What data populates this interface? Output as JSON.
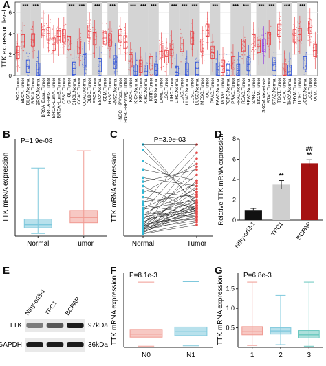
{
  "panel_labels": {
    "A": "A",
    "B": "B",
    "C": "C",
    "D": "D",
    "E": "E",
    "F": "F",
    "G": "G"
  },
  "chart_data": [
    {
      "id": "A",
      "type": "box",
      "ylabel": "TTK expression level",
      "ylim": [
        0,
        7
      ],
      "yticks": [
        0,
        2,
        4,
        6
      ],
      "categories": [
        "ACC.Tumor",
        "BLCA.Tumor",
        "BLCA.Normal",
        "BRCA.Tumor",
        "BRCA.Normal",
        "BRCA−Basal.Tumor",
        "BRCA−Her2.Tumor",
        "BRCA−LumA.Tumor",
        "BRCA−LumB.Tumor",
        "CESC.Tumor",
        "CHOL.Tumor",
        "CHOL.Normal",
        "COAD.Tumor",
        "COAD.Normal",
        "DLBC.Tumor",
        "ESCA.Tumor",
        "ESCA.Normal",
        "GBM.Tumor",
        "HNSC.Tumor",
        "HNSC.Normal",
        "HNSC−HPVpos.Tumor",
        "HNSC−HPVneg.Tumor",
        "KICH.Tumor",
        "KICH.Normal",
        "KIRC.Tumor",
        "KIRC.Normal",
        "KIRP.Tumor",
        "KIRP.Normal",
        "LAML.Tumor",
        "LGG.Tumor",
        "LIHC.Tumor",
        "LIHC.Normal",
        "LUAD.Tumor",
        "LUAD.Normal",
        "LUSC.Tumor",
        "LUSC.Normal",
        "MESO.Tumor",
        "OV.Tumor",
        "PAAD.Tumor",
        "PAAD.Normal",
        "PCPG.Tumor",
        "PCPG.Normal",
        "PRAD.Tumor",
        "PRAD.Normal",
        "READ.Tumor",
        "READ.Normal",
        "SARC.Tumor",
        "SKCM.Tumor",
        "SKCM.Metastasis",
        "STAD.Tumor",
        "STAD.Normal",
        "TGCT.Tumor",
        "THCA.Tumor",
        "THCA.Normal",
        "THYM.Tumor",
        "UCEC.Tumor",
        "UCEC.Normal",
        "UCS.Tumor",
        "UVM.Tumor"
      ],
      "medians": [
        2.2,
        3.3,
        0.9,
        3.4,
        0.6,
        4.4,
        4.0,
        3.0,
        3.7,
        3.8,
        3.1,
        0.7,
        2.7,
        1.4,
        4.2,
        3.5,
        1.0,
        3.6,
        3.4,
        1.3,
        3.8,
        3.2,
        1.4,
        0.4,
        0.9,
        0.4,
        1.2,
        0.5,
        2.3,
        1.8,
        2.5,
        0.3,
        2.9,
        0.6,
        3.6,
        0.7,
        2.9,
        4.3,
        2.2,
        0.6,
        0.9,
        0.5,
        1.2,
        0.5,
        2.9,
        1.1,
        3.3,
        2.8,
        2.9,
        3.5,
        1.1,
        4.3,
        0.6,
        0.4,
        3.8,
        3.9,
        1.2,
        4.6,
        2.4
      ],
      "groups": [
        "tumor",
        "tumor",
        "normal",
        "tumor",
        "normal",
        "tumor",
        "tumor",
        "tumor",
        "tumor",
        "tumor",
        "tumor",
        "normal",
        "tumor",
        "normal",
        "tumor",
        "tumor",
        "normal",
        "tumor",
        "tumor",
        "normal",
        "tumor",
        "tumor",
        "tumor",
        "normal",
        "tumor",
        "normal",
        "tumor",
        "normal",
        "tumor",
        "tumor",
        "tumor",
        "normal",
        "tumor",
        "normal",
        "tumor",
        "normal",
        "tumor",
        "tumor",
        "tumor",
        "normal",
        "tumor",
        "normal",
        "tumor",
        "normal",
        "tumor",
        "normal",
        "tumor",
        "tumor",
        "metastasis",
        "tumor",
        "normal",
        "tumor",
        "tumor",
        "normal",
        "tumor",
        "tumor",
        "normal",
        "tumor",
        "tumor"
      ],
      "significance": [
        "",
        "***",
        "",
        "***",
        "",
        "",
        "",
        "",
        "",
        "",
        "***",
        "",
        "***",
        "",
        "",
        "***",
        "",
        "",
        "***",
        "",
        "",
        "",
        "***",
        "",
        "***",
        "",
        "***",
        "",
        "",
        "",
        "***",
        "",
        "***",
        "",
        "***",
        "",
        "",
        "",
        "***",
        "",
        "",
        "",
        "***",
        "",
        "***",
        "",
        "",
        "***",
        "",
        "***",
        "",
        "",
        "***",
        "",
        "",
        "***",
        "",
        "",
        ""
      ],
      "colors": {
        "tumor": "#e8383d",
        "normal": "#2b4fd8",
        "metastasis": "#8a2be2"
      }
    },
    {
      "id": "B",
      "type": "box",
      "annotation": "P=1.9e-08",
      "ylabel": "TTK mRNA expression",
      "categories": [
        "Normal",
        "Tumor"
      ],
      "stats": [
        {
          "min": 0.05,
          "q1": 0.16,
          "median": 0.22,
          "q3": 0.33,
          "max": 1.33
        },
        {
          "min": 0.02,
          "q1": 0.26,
          "median": 0.36,
          "q3": 0.5,
          "max": 1.67
        }
      ],
      "colors": [
        "#7ec8dc",
        "#f09a92"
      ]
    },
    {
      "id": "C",
      "type": "paired",
      "annotation": "P=3.9e-03",
      "ylabel": "TTK mRNA expression",
      "categories": [
        "Normal",
        "Tumor"
      ],
      "normal": [
        1.65,
        1.55,
        1.35,
        1.2,
        1.05,
        0.98,
        0.9,
        0.82,
        0.78,
        0.7,
        0.62,
        0.58,
        0.55,
        0.5,
        0.48,
        0.45,
        0.42,
        0.4,
        0.38,
        0.36,
        0.34,
        0.32,
        0.3,
        0.28,
        0.26,
        0.25,
        0.24,
        0.22,
        0.21,
        0.2,
        0.19,
        0.18,
        0.17,
        0.16,
        0.15,
        0.14,
        0.13,
        0.12,
        0.11,
        0.1,
        0.09,
        0.08,
        0.07,
        0.06,
        0.05,
        0.04
      ],
      "tumor": [
        0.55,
        0.6,
        0.8,
        1.0,
        0.9,
        1.2,
        0.45,
        0.7,
        1.3,
        0.5,
        0.75,
        1.65,
        0.4,
        0.95,
        0.65,
        1.5,
        0.35,
        0.85,
        0.6,
        1.1,
        0.5,
        0.7,
        0.45,
        1.4,
        0.55,
        0.3,
        0.8,
        0.65,
        0.38,
        1.25,
        0.5,
        0.42,
        0.9,
        0.6,
        0.35,
        0.72,
        0.28,
        0.55,
        0.48,
        1.0,
        0.33,
        0.62,
        0.44,
        0.52,
        0.25,
        0.2
      ],
      "colors": {
        "normal": "#2fb8d6",
        "tumor": "#e84a4a"
      }
    },
    {
      "id": "D",
      "type": "bar",
      "ylabel": "Relative TTK mRNA expression",
      "ylim": [
        0,
        8
      ],
      "yticks": [
        0,
        2,
        4,
        6,
        8
      ],
      "categories": [
        "Nthy-ori3-1",
        "TPC1",
        "BCPAP"
      ],
      "values": [
        1.0,
        3.5,
        5.6
      ],
      "errors": [
        0.15,
        0.4,
        0.35
      ],
      "marks": [
        "",
        "**",
        "##\n**"
      ],
      "colors": [
        "#111111",
        "#cfcfcf",
        "#a51212"
      ]
    },
    {
      "id": "E",
      "type": "blot",
      "lanes": [
        "Nthy-ori3-1",
        "TPC1",
        "BCPAP"
      ],
      "rows": [
        {
          "label": "TTK",
          "size": "97kDa",
          "intensity": [
            0.55,
            0.7,
            0.95
          ]
        },
        {
          "label": "GAPDH",
          "size": "36kDa",
          "intensity": [
            0.95,
            0.95,
            0.95
          ]
        }
      ]
    },
    {
      "id": "F",
      "type": "box",
      "annotation": "P=8.1e-3",
      "ylabel": "TTK mRNA expression",
      "categories": [
        "N0",
        "N1"
      ],
      "stats": [
        {
          "min": 0.03,
          "q1": 0.26,
          "median": 0.34,
          "q3": 0.46,
          "max": 1.67
        },
        {
          "min": 0.04,
          "q1": 0.3,
          "median": 0.4,
          "q3": 0.52,
          "max": 1.68
        }
      ],
      "colors": [
        "#f09a92",
        "#7ec8dc"
      ]
    },
    {
      "id": "G",
      "type": "box",
      "annotation": "P=6.8e-3",
      "ylabel": "TTK mRNA expression",
      "ylim": [
        0,
        1.9
      ],
      "yticks": [
        0.5,
        1.0,
        1.5
      ],
      "categories": [
        "1",
        "2",
        "3"
      ],
      "stats": [
        {
          "min": 0.05,
          "q1": 0.32,
          "median": 0.4,
          "q3": 0.53,
          "max": 1.67
        },
        {
          "min": 0.07,
          "q1": 0.34,
          "median": 0.42,
          "q3": 0.5,
          "max": 1.33
        },
        {
          "min": 0.03,
          "q1": 0.24,
          "median": 0.32,
          "q3": 0.43,
          "max": 1.67
        }
      ],
      "colors": [
        "#f09a92",
        "#7ec8dc",
        "#69c7be"
      ]
    }
  ]
}
